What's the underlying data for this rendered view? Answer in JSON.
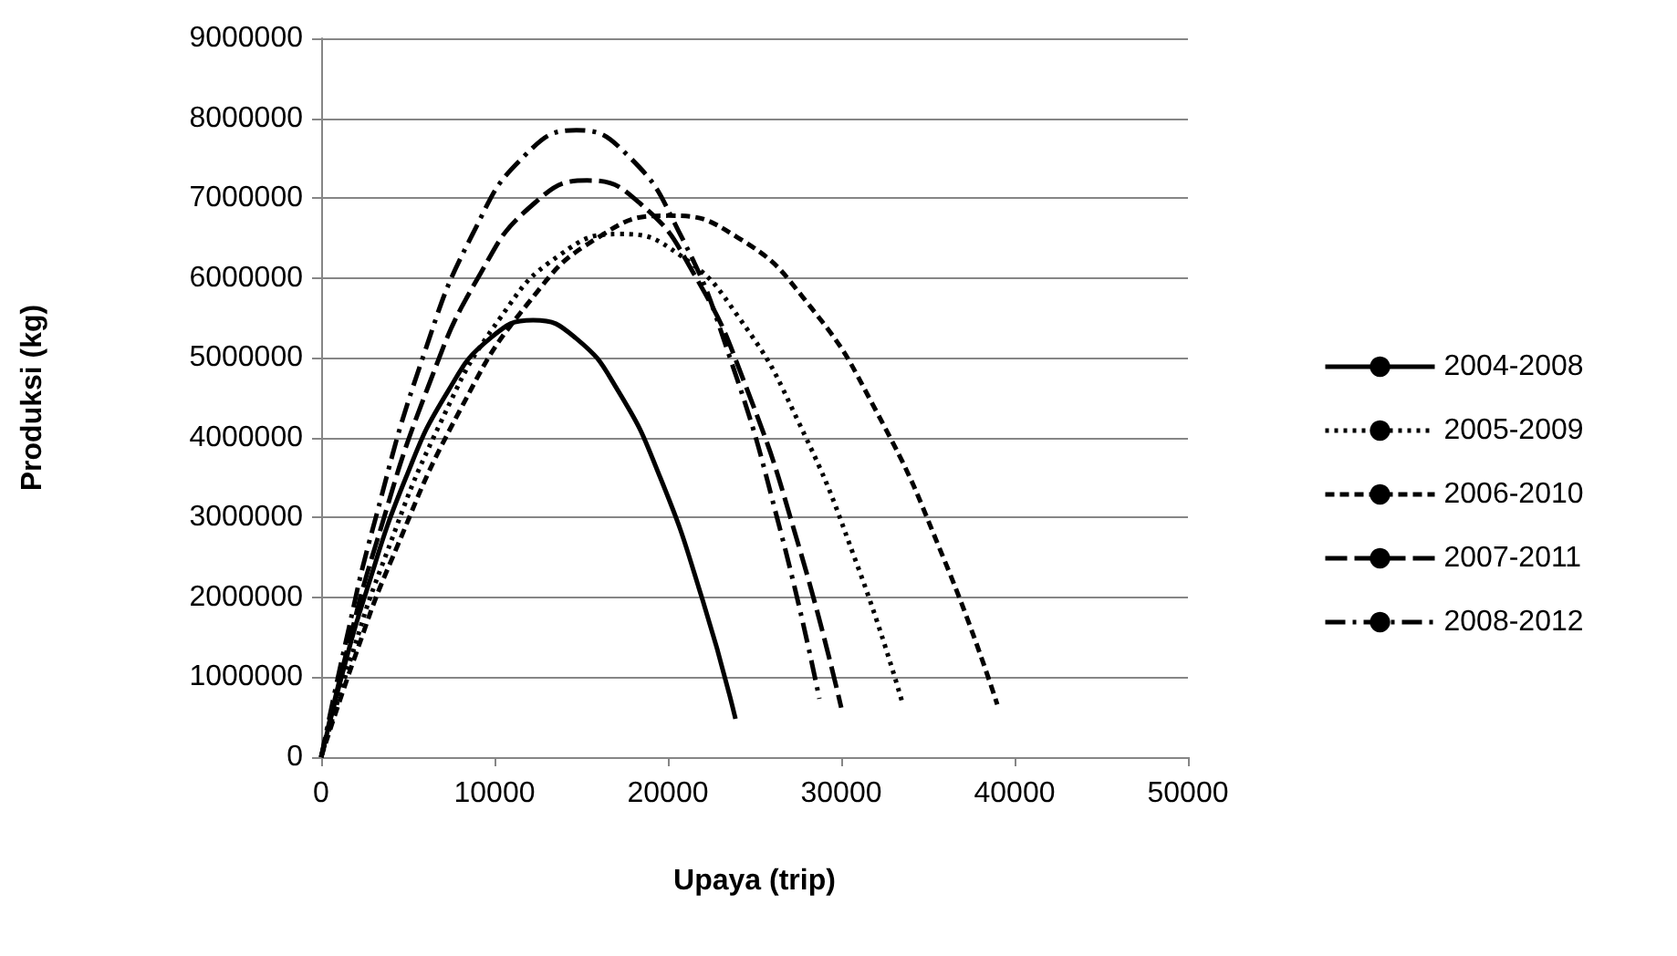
{
  "chart_data": {
    "type": "line",
    "xlabel": "Upaya (trip)",
    "ylabel": "Produksi (kg)",
    "xlim": [
      0,
      50000
    ],
    "xticks": [
      0,
      10000,
      20000,
      30000,
      40000,
      50000
    ],
    "ylim": [
      0,
      9000000
    ],
    "yticks": [
      0,
      1000000,
      2000000,
      3000000,
      4000000,
      5000000,
      6000000,
      7000000,
      8000000,
      9000000
    ],
    "grid": "y",
    "legend": "right",
    "marker": "none",
    "series": [
      {
        "name": "2004-2008",
        "color": "#000000",
        "line_style": "solid",
        "x": [
          0,
          1220,
          2450,
          4890,
          7340,
          9780,
          12230,
          14670,
          17120,
          19560,
          22000,
          23900
        ],
        "values": [
          0,
          1040000,
          1970000,
          3500000,
          4590000,
          5250000,
          5470000,
          5250000,
          4590000,
          3500000,
          1970000,
          480000
        ]
      },
      {
        "name": "2005-2009",
        "color": "#000000",
        "line_style": "dotted",
        "x": [
          0,
          1720,
          3440,
          6890,
          10330,
          13780,
          17220,
          20660,
          24110,
          27550,
          31000,
          33500
        ],
        "values": [
          0,
          1240000,
          2360000,
          4190000,
          5500000,
          6290000,
          6550000,
          6290000,
          5500000,
          4190000,
          2360000,
          700000
        ]
      },
      {
        "name": "2006-2010",
        "color": "#000000",
        "line_style": "dashed",
        "x": [
          0,
          2000,
          4000,
          8000,
          12000,
          16000,
          20000,
          24000,
          28000,
          32000,
          36000,
          39000
        ],
        "values": [
          0,
          1290000,
          2440000,
          4340000,
          5700000,
          6510000,
          6780000,
          6510000,
          5700000,
          4340000,
          2440000,
          660000
        ]
      },
      {
        "name": "2007-2011",
        "color": "#000000",
        "line_style": "dashed",
        "x": [
          0,
          1530,
          3070,
          6140,
          9200,
          12270,
          15340,
          18410,
          21480,
          24540,
          27610,
          30000
        ],
        "values": [
          0,
          1370000,
          2600000,
          4620000,
          6060000,
          6930000,
          7220000,
          6930000,
          6060000,
          4620000,
          2600000,
          620000
        ]
      },
      {
        "name": "2008-2012",
        "color": "#000000",
        "line_style": "dashed",
        "x": [
          0,
          1470,
          2940,
          5890,
          8830,
          11780,
          14720,
          17660,
          20610,
          23550,
          26500,
          28740
        ],
        "values": [
          0,
          1490000,
          2830000,
          5020000,
          6590000,
          7540000,
          7850000,
          7540000,
          6590000,
          5020000,
          2830000,
          730000
        ]
      }
    ]
  }
}
